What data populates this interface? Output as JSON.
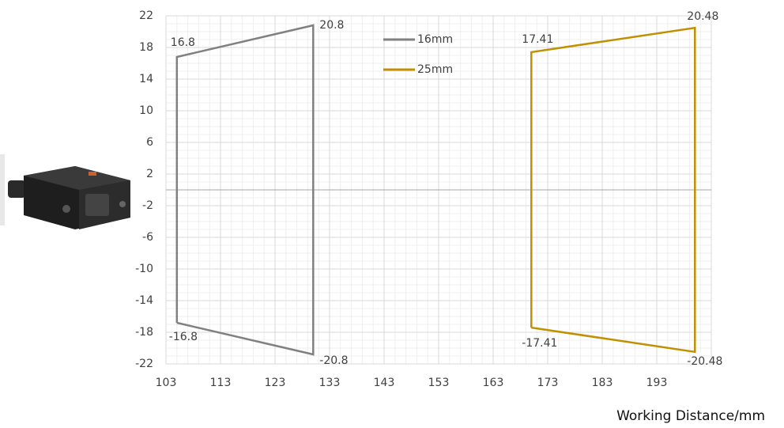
{
  "chart_data": {
    "type": "line",
    "x_label": "Working Distance/mm",
    "xlim": [
      103,
      203
    ],
    "xticks": [
      103,
      113,
      123,
      133,
      143,
      153,
      163,
      173,
      183,
      193
    ],
    "ylim": [
      -22,
      22
    ],
    "yticks": [
      22,
      18,
      14,
      10,
      6,
      2,
      -2,
      -6,
      -10,
      -14,
      -18,
      -22
    ],
    "grid": true,
    "legend": "top-center",
    "series": [
      {
        "name": "16mm",
        "color": "#808080",
        "x": [
          105,
          105,
          130,
          130,
          105
        ],
        "values": [
          -16.8,
          16.8,
          20.8,
          -20.8,
          -16.8
        ]
      },
      {
        "name": "25mm",
        "color": "#c09000",
        "x": [
          170,
          170,
          200,
          200,
          170
        ],
        "values": [
          -17.41,
          17.41,
          20.48,
          -20.48,
          -17.41
        ]
      }
    ]
  }
}
